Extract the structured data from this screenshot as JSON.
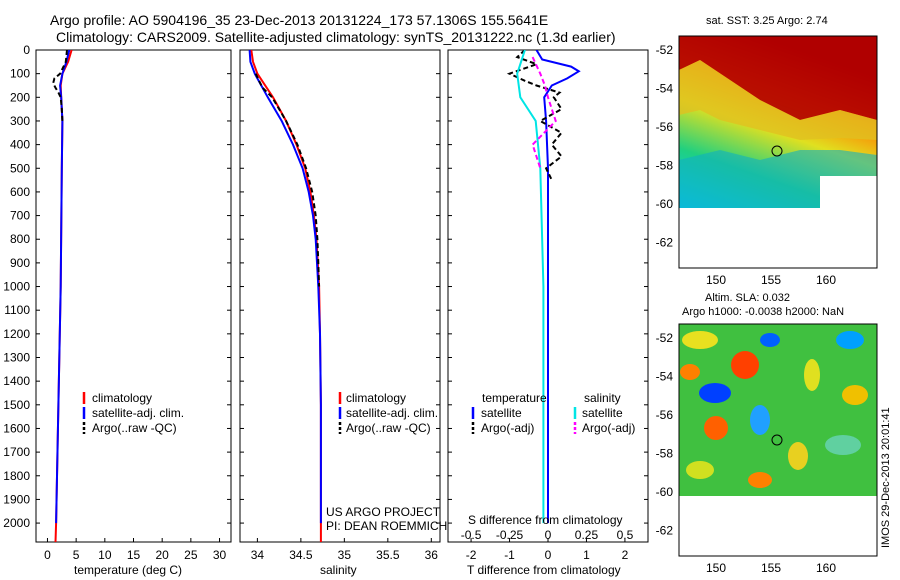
{
  "header": {
    "line1": "Argo profile: AO 5904196_35 23-Dec-2013 20131224_173 57.1306S 155.5641E",
    "line2": "Climatology: CARS2009. Satellite-adjusted climatology: synTS_20131222.nc (1.3d earlier)"
  },
  "colors": {
    "climatology": "#ff0000",
    "satellite": "#0000ff",
    "argo": "#000000",
    "satellite_salinity": "#00e5e5",
    "argo_salinity": "#ff00ff"
  },
  "depth_ticks": [
    "0",
    "100",
    "200",
    "300",
    "400",
    "500",
    "600",
    "700",
    "800",
    "900",
    "1000",
    "1100",
    "1200",
    "1300",
    "1400",
    "1500",
    "1600",
    "1700",
    "1800",
    "1900",
    "2000"
  ],
  "chart_data": [
    {
      "type": "line",
      "name": "temperature-profile",
      "xlabel": "temperature (deg C)",
      "ylabel": "",
      "xlim": [
        -2,
        32
      ],
      "ylim": [
        2080,
        0
      ],
      "x_ticks": [
        "0",
        "5",
        "10",
        "15",
        "20",
        "25",
        "30"
      ],
      "legend": [
        "climatology",
        "satellite-adj. clim.",
        "Argo(..raw -QC)"
      ],
      "series": [
        {
          "name": "climatology",
          "depth": [
            0,
            50,
            100,
            150,
            200,
            300,
            500,
            1000,
            1500,
            2000,
            2080
          ],
          "values": [
            4.2,
            3.6,
            2.6,
            2.3,
            2.4,
            2.6,
            2.5,
            2.3,
            1.9,
            1.5,
            1.4
          ]
        },
        {
          "name": "satellite-adj. clim.",
          "depth": [
            0,
            50,
            100,
            150,
            200,
            300,
            500,
            1000,
            1500,
            2000
          ],
          "values": [
            3.8,
            3.3,
            2.6,
            2.2,
            2.4,
            2.6,
            2.5,
            2.3,
            1.9,
            1.5
          ]
        },
        {
          "name": "Argo(..raw -QC)",
          "depth": [
            0,
            50,
            100,
            120,
            140,
            160,
            180,
            200,
            250,
            300
          ],
          "values": [
            3.4,
            3.2,
            2.2,
            1.2,
            1.0,
            1.4,
            1.9,
            2.3,
            2.5,
            2.6
          ]
        }
      ]
    },
    {
      "type": "line",
      "name": "salinity-profile",
      "xlabel": "salinity",
      "ylabel": "",
      "xlim": [
        33.8,
        36.1
      ],
      "ylim": [
        2080,
        0
      ],
      "x_ticks": [
        "34",
        "34.5",
        "35",
        "35.5",
        "36"
      ],
      "legend": [
        "climatology",
        "satellite-adj. clim.",
        "Argo(..raw -QC)"
      ],
      "annotation": [
        "US ARGO PROJECT",
        "PI: DEAN ROEMMICH"
      ],
      "series": [
        {
          "name": "climatology",
          "depth": [
            0,
            50,
            100,
            200,
            300,
            400,
            500,
            600,
            700,
            800,
            1000,
            1200,
            1500,
            2000,
            2080
          ],
          "values": [
            33.93,
            33.95,
            34.0,
            34.18,
            34.33,
            34.45,
            34.55,
            34.61,
            34.65,
            34.68,
            34.71,
            34.72,
            34.73,
            34.73,
            34.73
          ]
        },
        {
          "name": "satellite-adj. clim.",
          "depth": [
            0,
            50,
            100,
            200,
            300,
            400,
            500,
            600,
            700,
            800,
            1000,
            1200,
            1500,
            2000
          ],
          "values": [
            33.91,
            33.92,
            33.97,
            34.12,
            34.28,
            34.41,
            34.52,
            34.59,
            34.64,
            34.67,
            34.7,
            34.72,
            34.73,
            34.73
          ]
        },
        {
          "name": "Argo(..raw -QC)",
          "depth": [
            100,
            130,
            160,
            200,
            300,
            400,
            500,
            600,
            700,
            800,
            900,
            1000
          ],
          "values": [
            33.98,
            34.02,
            34.06,
            34.17,
            34.33,
            34.46,
            34.56,
            34.63,
            34.67,
            34.69,
            34.7,
            34.71
          ]
        }
      ]
    },
    {
      "type": "line",
      "name": "difference-profile",
      "xlabel": "T difference from climatology",
      "x2label": "S difference from climatology",
      "xlim": [
        -2.6,
        2.6
      ],
      "ylim": [
        2080,
        0
      ],
      "x_ticks": [
        "-2",
        "-1",
        "0",
        "1",
        "2"
      ],
      "x2_ticks": [
        "-0.5",
        "-0.25",
        "0",
        "0.25",
        "0.5"
      ],
      "legend_groups": [
        {
          "title": "temperature",
          "items": [
            "satellite",
            "Argo(-adj)"
          ]
        },
        {
          "title": "salinity",
          "items": [
            "satellite",
            "Argo(-adj)"
          ]
        }
      ],
      "series": [
        {
          "name": "temperature satellite",
          "depth": [
            0,
            40,
            70,
            90,
            120,
            150,
            200,
            300,
            500,
            1000,
            1500,
            2000
          ],
          "values": [
            -0.3,
            -0.15,
            0.6,
            0.8,
            0.5,
            0.1,
            -0.1,
            -0.05,
            0.0,
            0.0,
            0.0,
            0.0
          ]
        },
        {
          "name": "temperature Argo(-adj)",
          "depth": [
            0,
            30,
            60,
            100,
            130,
            150,
            180,
            200,
            250,
            300,
            350,
            400,
            450,
            500,
            550
          ],
          "values": [
            -0.6,
            -0.8,
            -0.3,
            -1.0,
            -0.6,
            -0.3,
            0.3,
            0.15,
            0.35,
            -0.2,
            0.35,
            0.1,
            0.35,
            -0.05,
            0.1
          ]
        },
        {
          "name": "salinity satellite",
          "depth": [
            0,
            100,
            200,
            300,
            500,
            1000,
            1500,
            2000
          ],
          "values": [
            -0.15,
            -0.2,
            -0.18,
            -0.08,
            -0.05,
            -0.03,
            -0.03,
            -0.03
          ]
        },
        {
          "name": "salinity Argo(-adj)",
          "depth": [
            30,
            100,
            150,
            200,
            300,
            400,
            500
          ],
          "values": [
            -0.1,
            -0.05,
            -0.02,
            0.0,
            0.05,
            -0.1,
            -0.05
          ]
        }
      ]
    }
  ],
  "maps": [
    {
      "name": "sst-map",
      "title": "sat. SST: 3.25  Argo: 2.74",
      "lon_ticks": [
        "150",
        "155",
        "160"
      ],
      "lat_ticks": [
        "-52",
        "-54",
        "-56",
        "-58",
        "-60",
        "-62"
      ],
      "marker": {
        "lon": 155.56,
        "lat": -57.13
      }
    },
    {
      "name": "sla-map",
      "title_line1": "Altim. SLA: 0.032",
      "title_line2": "Argo h1000: -0.0038  h2000: NaN",
      "lon_ticks": [
        "150",
        "155",
        "160"
      ],
      "lat_ticks": [
        "-52",
        "-54",
        "-56",
        "-58",
        "-60",
        "-62"
      ],
      "marker": {
        "lon": 155.56,
        "lat": -57.13
      }
    }
  ],
  "stamp": "IMOS 29-Dec-2013 20:01:41"
}
